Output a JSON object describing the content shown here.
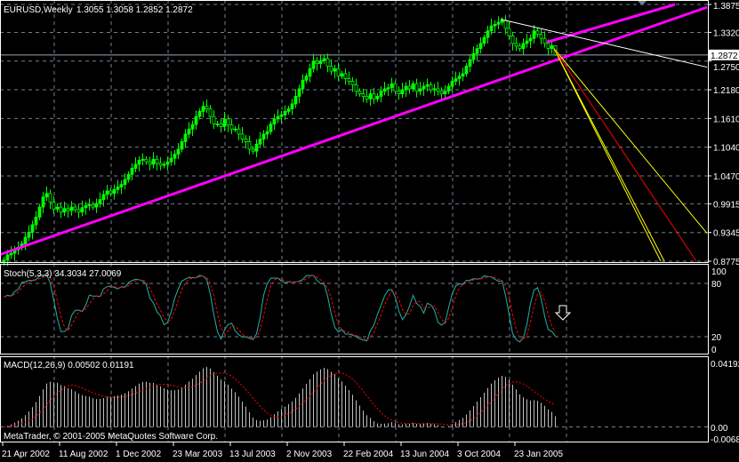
{
  "header": {
    "symbol": "EURUSD,Weekly",
    "ohlc": "1.3055 1.3058 1.2852 1.2872"
  },
  "colors": {
    "background": "#000000",
    "bull": "#00ff00",
    "grid": "#708090",
    "trendline": "#ff00ff",
    "stoch_main": "#20b2aa",
    "signal": "#ff0000",
    "macd_hist": "#c0c0c0",
    "fan_yellow": "#ffff00",
    "fan_red": "#ff0000",
    "resistance": "#ffffff"
  },
  "copyright": "MetaTrader, © 2001-2005 MetaQuotes Software Corp.",
  "chart_data": [
    {
      "type": "candlestick",
      "title": "EURUSD,Weekly",
      "x_tick_labels": [
        "21 Apr 2002",
        "11 Aug 2002",
        "1 Dec 2002",
        "23 Mar 2003",
        "13 Jul 2003",
        "2 Nov 2003",
        "22 Feb 2004",
        "13 Jun 2004",
        "3 Oct 2004",
        "23 Jan 2005"
      ],
      "y_tick_labels": [
        "1.3875",
        "1.3320",
        "1.2750",
        "1.2180",
        "1.1610",
        "1.1040",
        "1.0470",
        "0.9915",
        "0.9345",
        "0.8775"
      ],
      "ylim": [
        0.8775,
        1.3875
      ],
      "current_price": "1.2872",
      "last_bar": {
        "open": 1.3055,
        "high": 1.3058,
        "low": 1.2852,
        "close": 1.2872
      },
      "weekly_close": [
        0.88,
        0.89,
        0.893,
        0.9,
        0.905,
        0.912,
        0.925,
        0.935,
        0.95,
        0.965,
        0.985,
        1.005,
        1.012,
        0.995,
        0.981,
        0.985,
        0.975,
        0.982,
        0.978,
        0.985,
        0.98,
        0.975,
        0.984,
        0.988,
        0.99,
        0.985,
        0.992,
        1.0,
        1.01,
        1.017,
        1.012,
        1.02,
        1.025,
        1.03,
        1.04,
        1.05,
        1.062,
        1.07,
        1.078,
        1.08,
        1.075,
        1.07,
        1.08,
        1.072,
        1.068,
        1.07,
        1.075,
        1.082,
        1.09,
        1.1,
        1.115,
        1.13,
        1.14,
        1.149,
        1.165,
        1.175,
        1.185,
        1.18,
        1.165,
        1.15,
        1.15,
        1.145,
        1.16,
        1.148,
        1.14,
        1.14,
        1.13,
        1.12,
        1.115,
        1.1,
        1.096,
        1.11,
        1.12,
        1.13,
        1.135,
        1.15,
        1.16,
        1.165,
        1.168,
        1.175,
        1.18,
        1.19,
        1.205,
        1.22,
        1.237,
        1.245,
        1.26,
        1.275,
        1.27,
        1.276,
        1.28,
        1.265,
        1.255,
        1.26,
        1.245,
        1.25,
        1.24,
        1.235,
        1.228,
        1.215,
        1.21,
        1.205,
        1.2,
        1.21,
        1.2,
        1.205,
        1.215,
        1.22,
        1.222,
        1.23,
        1.215,
        1.21,
        1.218,
        1.225,
        1.22,
        1.23,
        1.215,
        1.22,
        1.225,
        1.228,
        1.218,
        1.22,
        1.215,
        1.21,
        1.215,
        1.225,
        1.235,
        1.24,
        1.245,
        1.25,
        1.265,
        1.278,
        1.29,
        1.3,
        1.31,
        1.322,
        1.335,
        1.345,
        1.348,
        1.352,
        1.356,
        1.34,
        1.325,
        1.31,
        1.305,
        1.3,
        1.31,
        1.315,
        1.32,
        1.335,
        1.328,
        1.32,
        1.31,
        1.3,
        1.3055,
        1.2872
      ],
      "trendlines": [
        {
          "kind": "support",
          "color": "#ff00ff",
          "from": [
            -1,
            0.89
          ],
          "to": [
            198,
            1.382
          ]
        },
        {
          "kind": "channel",
          "color": "#ff00ff",
          "from": [
            153,
            1.3125
          ],
          "to": [
            189,
            1.3875
          ]
        },
        {
          "kind": "resistance",
          "color": "#ffffff",
          "from": [
            140,
            1.358
          ],
          "to": [
            198,
            1.263
          ]
        },
        {
          "kind": "fan",
          "color": "#ffff00",
          "from": [
            155,
            1.3
          ],
          "to": [
            185,
            0.8775
          ]
        },
        {
          "kind": "fan",
          "color": "#ffff00",
          "from": [
            155,
            1.3
          ],
          "to": [
            186,
            0.8775
          ]
        },
        {
          "kind": "fan",
          "color": "#ff0000",
          "from": [
            155,
            1.3
          ],
          "to": [
            195,
            0.8775
          ]
        },
        {
          "kind": "fan",
          "color": "#ffff00",
          "from": [
            155,
            1.3
          ],
          "to": [
            198,
            0.933
          ]
        }
      ]
    },
    {
      "type": "line",
      "title": "Stoch(5,3,3) 34.3034 27.0069",
      "y_tick_labels": [
        "100",
        "80",
        "20",
        "0"
      ],
      "ylim": [
        0,
        100
      ],
      "levels": [
        80,
        20
      ]
    },
    {
      "type": "bar",
      "title": "MACD(12,26,9) 0.00502 0.01191",
      "y_tick_labels": [
        "0.04192",
        "0.00",
        "-0.0068"
      ],
      "ylim": [
        -0.0068,
        0.04192
      ]
    }
  ]
}
